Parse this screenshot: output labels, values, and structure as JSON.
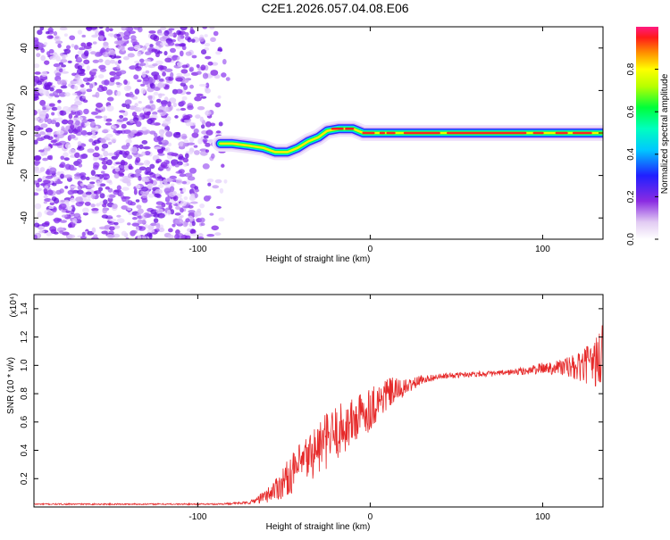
{
  "title": "C2E1.2026.057.04.08.E06",
  "colors": {
    "snr_line": "#e62a2a",
    "axis": "#000000",
    "background": "#ffffff"
  },
  "chart_data": [
    {
      "type": "heatmap",
      "name": "spectrogram",
      "xlabel": "Height of straight line (km)",
      "ylabel": "Frequency (Hz)",
      "xlim": [
        -195,
        135
      ],
      "ylim": [
        -50,
        50
      ],
      "x_ticks": [
        -100,
        0,
        100
      ],
      "x_tick_labels": [
        "-100",
        "0",
        "100"
      ],
      "y_ticks": [
        -40,
        -20,
        0,
        20,
        40
      ],
      "y_tick_labels": [
        "-40",
        "-20",
        "0",
        "20",
        "40"
      ],
      "noise_region_x": [
        -195,
        -80
      ],
      "signal_track": [
        {
          "x": -87,
          "y": -5
        },
        {
          "x": -80,
          "y": -5
        },
        {
          "x": -70,
          "y": -6
        },
        {
          "x": -62,
          "y": -7
        },
        {
          "x": -55,
          "y": -9
        },
        {
          "x": -48,
          "y": -9
        },
        {
          "x": -42,
          "y": -7
        },
        {
          "x": -36,
          "y": -4
        },
        {
          "x": -30,
          "y": -2
        },
        {
          "x": -25,
          "y": 1
        },
        {
          "x": -18,
          "y": 2
        },
        {
          "x": -10,
          "y": 2
        },
        {
          "x": -4,
          "y": 0
        },
        {
          "x": 10,
          "y": 0
        },
        {
          "x": 40,
          "y": 0
        },
        {
          "x": 80,
          "y": 0
        },
        {
          "x": 110,
          "y": 0
        },
        {
          "x": 135,
          "y": 0
        }
      ],
      "colorbar": {
        "label": "Normalized spectral amplitude",
        "range": [
          0,
          1
        ],
        "ticks": [
          0.0,
          0.2,
          0.4,
          0.6,
          0.8
        ],
        "tick_labels": [
          "0.0",
          "0.2",
          "0.4",
          "0.6",
          "0.8"
        ]
      }
    },
    {
      "type": "line",
      "name": "snr",
      "xlabel": "Height of straight line (km)",
      "ylabel": "SNR (10 * v/v)",
      "y_multiplier_label": "(x10⁴)",
      "xlim": [
        -195,
        135
      ],
      "ylim": [
        0,
        1.5
      ],
      "x_ticks": [
        -100,
        0,
        100
      ],
      "x_tick_labels": [
        "-100",
        "0",
        "100"
      ],
      "y_ticks": [
        0.2,
        0.4,
        0.6,
        0.8,
        1.0,
        1.2,
        1.4
      ],
      "y_tick_labels": [
        "0.2",
        "0.4",
        "0.6",
        "0.8",
        "1.0",
        "1.2",
        "1.4"
      ],
      "series": [
        {
          "name": "SNR",
          "x": [
            -195,
            -160,
            -120,
            -90,
            -70,
            -60,
            -50,
            -40,
            -30,
            -20,
            -10,
            0,
            10,
            20,
            30,
            40,
            50,
            60,
            70,
            80,
            90,
            100,
            110,
            120,
            130,
            135
          ],
          "y": [
            0.02,
            0.02,
            0.02,
            0.02,
            0.03,
            0.08,
            0.18,
            0.3,
            0.42,
            0.52,
            0.6,
            0.7,
            0.8,
            0.84,
            0.9,
            0.92,
            0.93,
            0.94,
            0.94,
            0.95,
            0.96,
            0.98,
            0.99,
            0.98,
            1.02,
            1.05
          ],
          "noise_amplitude": [
            0.005,
            0.005,
            0.005,
            0.005,
            0.01,
            0.05,
            0.12,
            0.16,
            0.2,
            0.2,
            0.18,
            0.16,
            0.12,
            0.06,
            0.03,
            0.02,
            0.02,
            0.02,
            0.02,
            0.02,
            0.03,
            0.04,
            0.06,
            0.1,
            0.16,
            0.3
          ]
        }
      ]
    }
  ]
}
